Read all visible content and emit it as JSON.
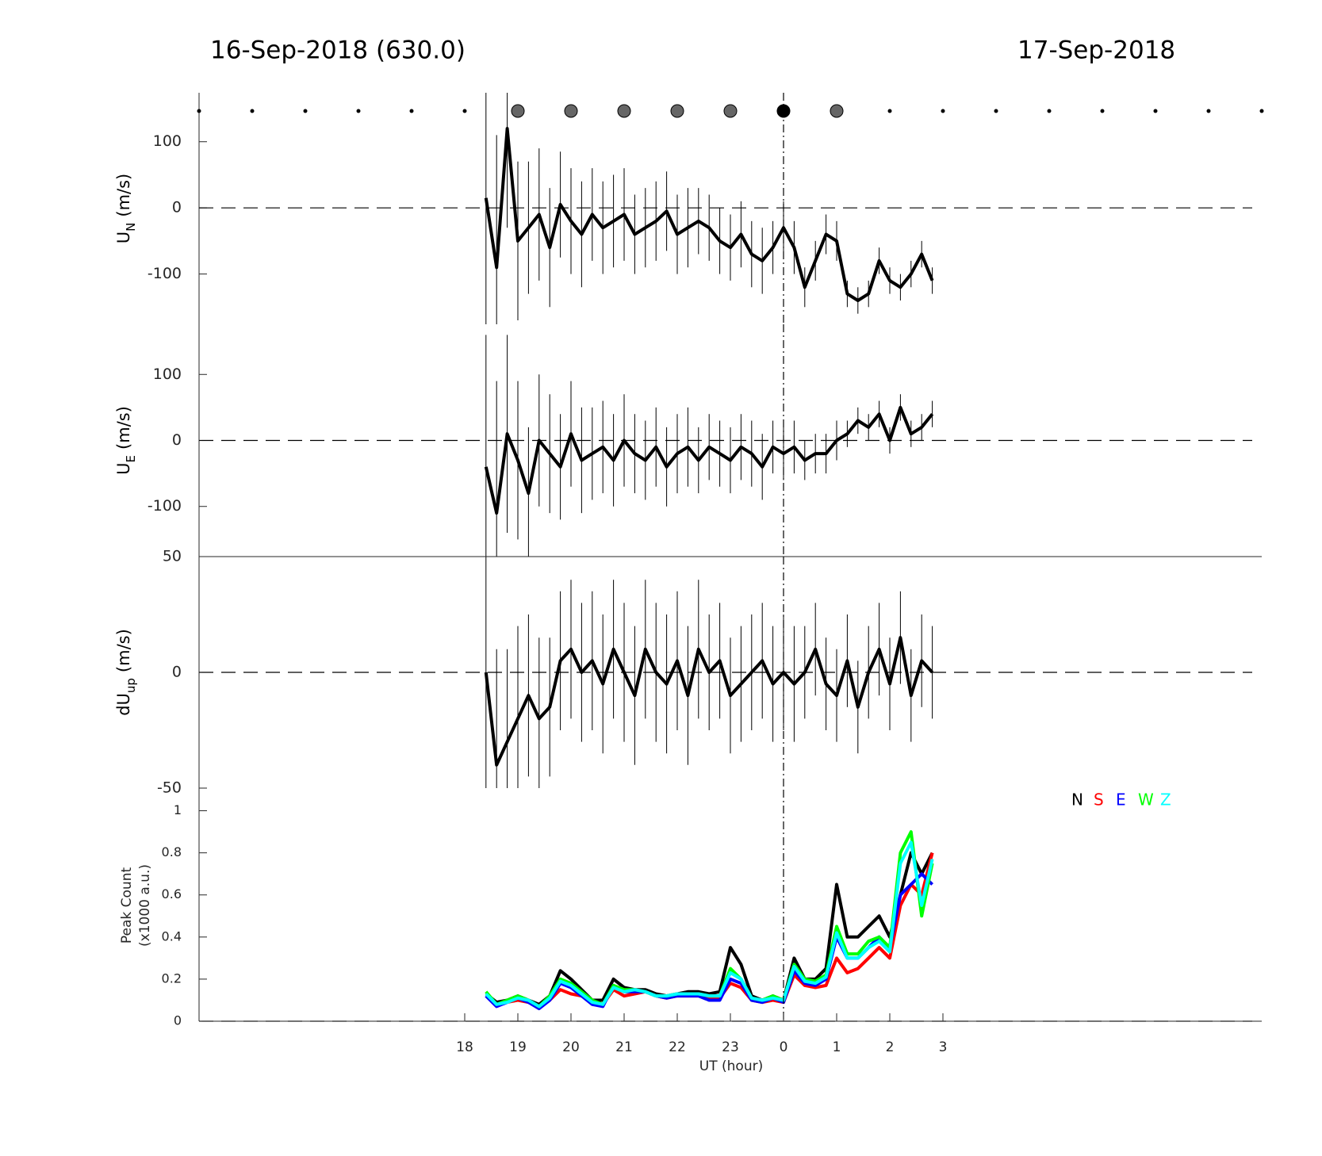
{
  "header": {
    "left": "16-Sep-2018 (630.0)",
    "right": "17-Sep-2018"
  },
  "chart_data": [
    {
      "type": "dots",
      "xlim": [
        13,
        33
      ],
      "x": [
        13,
        14,
        15,
        16,
        17,
        18,
        19,
        20,
        21,
        22,
        23,
        24,
        25,
        26,
        27,
        28,
        29,
        30,
        31,
        32,
        33
      ],
      "marker_sizes": [
        "small",
        "small",
        "small",
        "small",
        "small",
        "small",
        "large",
        "large",
        "large",
        "large",
        "large",
        "large",
        "large",
        "small",
        "small",
        "small",
        "small",
        "small",
        "small",
        "small",
        "small"
      ],
      "colors": [
        "#000",
        "#000",
        "#000",
        "#000",
        "#000",
        "#000",
        "#666",
        "#666",
        "#666",
        "#666",
        "#666",
        "#000",
        "#666",
        "#000",
        "#000",
        "#000",
        "#000",
        "#000",
        "#000",
        "#000",
        "#000"
      ]
    },
    {
      "type": "errorline",
      "ylabel": {
        "main": "U",
        "sub": "N",
        "unit": "(m/s)"
      },
      "xlim": [
        13,
        33
      ],
      "ylim": [
        -176,
        174
      ],
      "yticks": [
        -100,
        0,
        100
      ],
      "color": "#000",
      "vline": 24,
      "x": [
        18.4,
        18.6,
        18.8,
        19.0,
        19.2,
        19.4,
        19.6,
        19.8,
        20.0,
        20.2,
        20.4,
        20.6,
        20.8,
        21.0,
        21.2,
        21.4,
        21.6,
        21.8,
        22.0,
        22.2,
        22.4,
        22.6,
        22.8,
        23.0,
        23.2,
        23.4,
        23.6,
        23.8,
        24.0,
        24.2,
        24.4,
        24.6,
        24.8,
        25.0,
        25.2,
        25.4,
        25.6,
        25.8,
        26.0,
        26.2,
        26.4,
        26.6,
        26.8
      ],
      "values": [
        15,
        -90,
        120,
        -50,
        -30,
        -10,
        -60,
        5,
        -20,
        -40,
        -10,
        -30,
        -20,
        -10,
        -40,
        -30,
        -20,
        -5,
        -40,
        -30,
        -20,
        -30,
        -50,
        -60,
        -40,
        -70,
        -80,
        -60,
        -30,
        -60,
        -120,
        -80,
        -40,
        -50,
        -130,
        -140,
        -130,
        -80,
        -110,
        -120,
        -100,
        -70,
        -110
      ],
      "errors": [
        200,
        200,
        150,
        120,
        100,
        100,
        90,
        80,
        80,
        80,
        70,
        70,
        70,
        70,
        60,
        60,
        60,
        60,
        60,
        60,
        50,
        50,
        50,
        50,
        50,
        50,
        50,
        40,
        40,
        40,
        30,
        30,
        30,
        30,
        20,
        20,
        20,
        20,
        20,
        20,
        20,
        20,
        20
      ]
    },
    {
      "type": "errorline",
      "ylabel": {
        "main": "U",
        "sub": "E",
        "unit": "(m/s)"
      },
      "xlim": [
        13,
        33
      ],
      "ylim": [
        -176,
        176
      ],
      "yticks": [
        -100,
        0,
        100
      ],
      "color": "#000",
      "vline": 24,
      "x": [
        18.4,
        18.6,
        18.8,
        19.0,
        19.2,
        19.4,
        19.6,
        19.8,
        20.0,
        20.2,
        20.4,
        20.6,
        20.8,
        21.0,
        21.2,
        21.4,
        21.6,
        21.8,
        22.0,
        22.2,
        22.4,
        22.6,
        22.8,
        23.0,
        23.2,
        23.4,
        23.6,
        23.8,
        24.0,
        24.2,
        24.4,
        24.6,
        24.8,
        25.0,
        25.2,
        25.4,
        25.6,
        25.8,
        26.0,
        26.2,
        26.4,
        26.6,
        26.8
      ],
      "values": [
        -40,
        -110,
        10,
        -30,
        -80,
        0,
        -20,
        -40,
        10,
        -30,
        -20,
        -10,
        -30,
        0,
        -20,
        -30,
        -10,
        -40,
        -20,
        -10,
        -30,
        -10,
        -20,
        -30,
        -10,
        -20,
        -40,
        -10,
        -20,
        -10,
        -30,
        -20,
        -20,
        0,
        10,
        30,
        20,
        40,
        0,
        50,
        10,
        20,
        40
      ],
      "errors": [
        200,
        200,
        150,
        120,
        100,
        100,
        90,
        80,
        80,
        80,
        70,
        70,
        70,
        70,
        60,
        60,
        60,
        60,
        60,
        60,
        50,
        50,
        50,
        50,
        50,
        50,
        50,
        40,
        40,
        40,
        30,
        30,
        30,
        30,
        20,
        20,
        20,
        20,
        20,
        20,
        20,
        20,
        20
      ]
    },
    {
      "type": "errorline",
      "ylabel": {
        "main": "dU",
        "sub": "up",
        "unit": "(m/s)"
      },
      "xlim": [
        13,
        33
      ],
      "ylim": [
        -50,
        50
      ],
      "yticks": [
        -50,
        0,
        50
      ],
      "color": "#000",
      "vline": 24,
      "top_line": true,
      "x": [
        18.4,
        18.6,
        18.8,
        19.0,
        19.2,
        19.4,
        19.6,
        19.8,
        20.0,
        20.2,
        20.4,
        20.6,
        20.8,
        21.0,
        21.2,
        21.4,
        21.6,
        21.8,
        22.0,
        22.2,
        22.4,
        22.6,
        22.8,
        23.0,
        23.2,
        23.4,
        23.6,
        23.8,
        24.0,
        24.2,
        24.4,
        24.6,
        24.8,
        25.0,
        25.2,
        25.4,
        25.6,
        25.8,
        26.0,
        26.2,
        26.4,
        26.6,
        26.8
      ],
      "values": [
        0,
        -40,
        -30,
        -20,
        -10,
        -20,
        -15,
        5,
        10,
        0,
        5,
        -5,
        10,
        0,
        -10,
        10,
        0,
        -5,
        5,
        -10,
        10,
        0,
        5,
        -10,
        -5,
        0,
        5,
        -5,
        0,
        -5,
        0,
        10,
        -5,
        -10,
        5,
        -15,
        0,
        10,
        -5,
        15,
        -10,
        5,
        0
      ],
      "errors": [
        50,
        50,
        40,
        40,
        35,
        35,
        30,
        30,
        30,
        30,
        30,
        30,
        30,
        30,
        30,
        30,
        30,
        30,
        30,
        30,
        30,
        25,
        25,
        25,
        25,
        25,
        25,
        25,
        25,
        25,
        20,
        20,
        20,
        20,
        20,
        20,
        20,
        20,
        20,
        20,
        20,
        20,
        20
      ]
    },
    {
      "type": "line",
      "ylabel": [
        "Peak Count",
        "(x1000 a.u.)"
      ],
      "xlabel": "UT (hour)",
      "xlim": [
        13,
        33
      ],
      "ylim": [
        0,
        1.1
      ],
      "yticks": [
        0,
        0.2,
        0.4,
        0.6,
        0.8,
        1
      ],
      "vline": 24,
      "xticks": [
        18,
        19,
        20,
        21,
        22,
        23,
        {
          "value": 24,
          "label": "0"
        },
        {
          "value": 25,
          "label": "1"
        },
        {
          "value": 26,
          "label": "2"
        },
        {
          "value": 27,
          "label": "3"
        }
      ],
      "x": [
        18.4,
        18.6,
        18.8,
        19.0,
        19.2,
        19.4,
        19.6,
        19.8,
        20.0,
        20.2,
        20.4,
        20.6,
        20.8,
        21.0,
        21.2,
        21.4,
        21.6,
        21.8,
        22.0,
        22.2,
        22.4,
        22.6,
        22.8,
        23.0,
        23.2,
        23.4,
        23.6,
        23.8,
        24.0,
        24.2,
        24.4,
        24.6,
        24.8,
        25.0,
        25.2,
        25.4,
        25.6,
        25.8,
        26.0,
        26.2,
        26.4,
        26.6,
        26.8
      ],
      "series": [
        {
          "name": "N",
          "color": "#000000",
          "values": [
            0.13,
            0.09,
            0.1,
            0.12,
            0.1,
            0.08,
            0.12,
            0.24,
            0.2,
            0.15,
            0.1,
            0.1,
            0.2,
            0.16,
            0.15,
            0.15,
            0.13,
            0.12,
            0.13,
            0.14,
            0.14,
            0.13,
            0.14,
            0.35,
            0.27,
            0.12,
            0.1,
            0.12,
            0.1,
            0.3,
            0.2,
            0.2,
            0.25,
            0.65,
            0.4,
            0.4,
            0.45,
            0.5,
            0.4,
            0.6,
            0.8,
            0.7,
            0.8
          ]
        },
        {
          "name": "S",
          "color": "#ff0000",
          "values": [
            0.12,
            0.08,
            0.09,
            0.1,
            0.09,
            0.07,
            0.1,
            0.15,
            0.13,
            0.12,
            0.09,
            0.08,
            0.15,
            0.12,
            0.13,
            0.14,
            0.12,
            0.11,
            0.12,
            0.12,
            0.12,
            0.11,
            0.11,
            0.18,
            0.16,
            0.1,
            0.09,
            0.1,
            0.09,
            0.22,
            0.17,
            0.16,
            0.17,
            0.3,
            0.23,
            0.25,
            0.3,
            0.35,
            0.3,
            0.55,
            0.65,
            0.6,
            0.8
          ]
        },
        {
          "name": "E",
          "color": "#0000ff",
          "values": [
            0.12,
            0.07,
            0.09,
            0.11,
            0.09,
            0.06,
            0.1,
            0.18,
            0.16,
            0.12,
            0.08,
            0.07,
            0.17,
            0.14,
            0.14,
            0.14,
            0.12,
            0.11,
            0.12,
            0.12,
            0.12,
            0.1,
            0.1,
            0.2,
            0.18,
            0.1,
            0.09,
            0.11,
            0.09,
            0.24,
            0.18,
            0.17,
            0.2,
            0.4,
            0.3,
            0.3,
            0.35,
            0.4,
            0.35,
            0.6,
            0.65,
            0.7,
            0.65
          ]
        },
        {
          "name": "W",
          "color": "#00ff00",
          "values": [
            0.14,
            0.08,
            0.1,
            0.12,
            0.1,
            0.07,
            0.12,
            0.2,
            0.18,
            0.14,
            0.1,
            0.08,
            0.17,
            0.15,
            0.15,
            0.14,
            0.12,
            0.12,
            0.13,
            0.13,
            0.13,
            0.12,
            0.12,
            0.25,
            0.2,
            0.11,
            0.1,
            0.12,
            0.1,
            0.27,
            0.2,
            0.19,
            0.22,
            0.45,
            0.32,
            0.32,
            0.38,
            0.4,
            0.35,
            0.8,
            0.9,
            0.5,
            0.75
          ]
        },
        {
          "name": "Z",
          "color": "#00ffff",
          "values": [
            0.13,
            0.08,
            0.09,
            0.11,
            0.1,
            0.07,
            0.11,
            0.19,
            0.17,
            0.13,
            0.09,
            0.08,
            0.16,
            0.14,
            0.15,
            0.14,
            0.12,
            0.12,
            0.13,
            0.13,
            0.13,
            0.12,
            0.12,
            0.23,
            0.2,
            0.11,
            0.1,
            0.11,
            0.1,
            0.26,
            0.19,
            0.18,
            0.21,
            0.42,
            0.3,
            0.3,
            0.35,
            0.38,
            0.33,
            0.75,
            0.85,
            0.55,
            0.77
          ]
        }
      ]
    }
  ]
}
